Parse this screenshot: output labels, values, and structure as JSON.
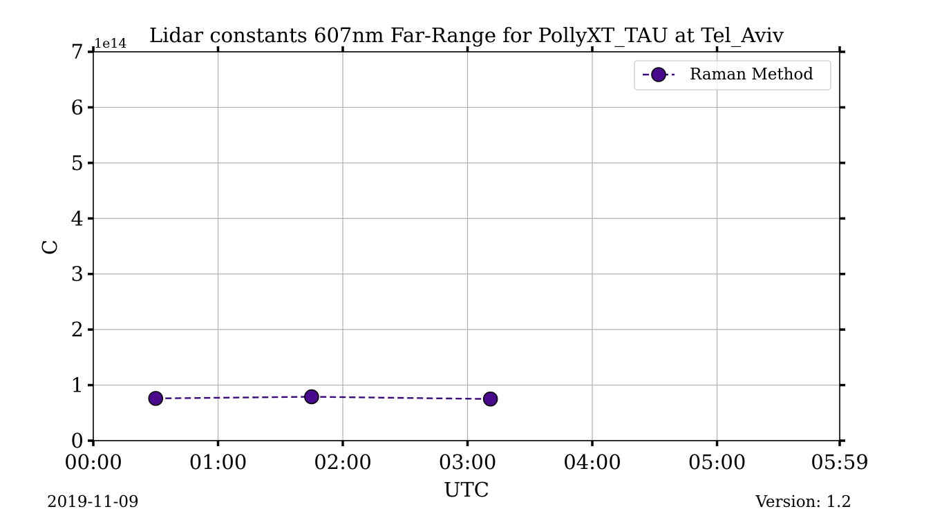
{
  "chart_data": {
    "type": "line",
    "title": "Lidar constants 607nm Far-Range for PollyXT_TAU at Tel_Aviv",
    "xlabel": "UTC",
    "ylabel": "C",
    "y_offset_label": "1e14",
    "xlim": [
      "00:00",
      "05:59"
    ],
    "ylim": [
      0,
      7
    ],
    "y_scale_exponent": 14,
    "xticks": [
      "00:00",
      "01:00",
      "02:00",
      "03:00",
      "04:00",
      "05:00",
      "05:59"
    ],
    "yticks": [
      "0",
      "1",
      "2",
      "3",
      "4",
      "5",
      "6",
      "7"
    ],
    "grid": true,
    "legend_position": "top-right",
    "series": [
      {
        "name": "Raman Method",
        "color": "#4a0a8c",
        "line_style": "dashed",
        "marker": "circle",
        "x": [
          "00:30",
          "01:45",
          "03:11"
        ],
        "y": [
          76000000000000.0,
          79000000000000.0,
          75000000000000.0
        ]
      }
    ]
  },
  "footer": {
    "date": "2019-11-09",
    "version": "Version: 1.2"
  }
}
